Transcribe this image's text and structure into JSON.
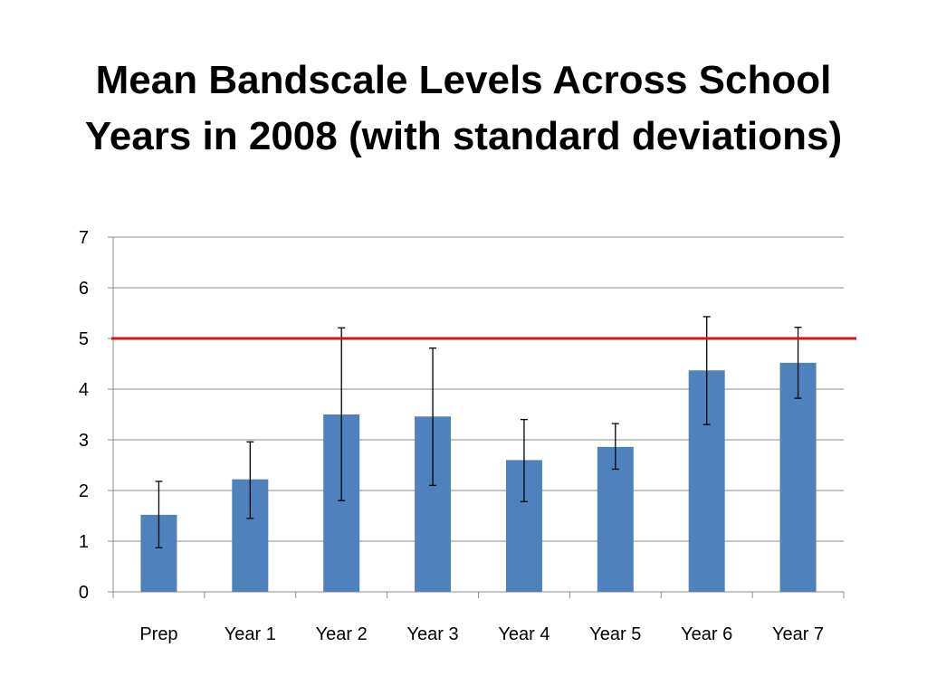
{
  "slide": {
    "title_line1": "Mean Bandscale Levels Across School",
    "title_line2": "Years in 2008 (with standard deviations)"
  },
  "chart_data": {
    "type": "bar",
    "title": "Mean Bandscale Levels Across School Years in 2008 (with standard deviations)",
    "categories": [
      "Prep",
      "Year 1",
      "Year 2",
      "Year 3",
      "Year 4",
      "Year 5",
      "Year 6",
      "Year 7"
    ],
    "values": [
      1.52,
      2.22,
      3.5,
      3.46,
      2.6,
      2.86,
      4.37,
      4.52
    ],
    "error_low": [
      0.87,
      1.45,
      1.8,
      2.1,
      1.78,
      2.42,
      3.3,
      3.82
    ],
    "error_high": [
      2.18,
      2.96,
      5.21,
      4.81,
      3.4,
      3.32,
      5.43,
      5.22
    ],
    "ylim": [
      0,
      7
    ],
    "yticks": [
      "0",
      "1",
      "2",
      "3",
      "4",
      "5",
      "6",
      "7"
    ],
    "reference_line": 5,
    "grid": true,
    "legend": "none",
    "xlabel": "",
    "ylabel": "",
    "colors": {
      "bar": "#4F81BD",
      "reference_line": "#D0161A",
      "grid": "#8C8C8C",
      "error_bar": "#000000"
    }
  }
}
